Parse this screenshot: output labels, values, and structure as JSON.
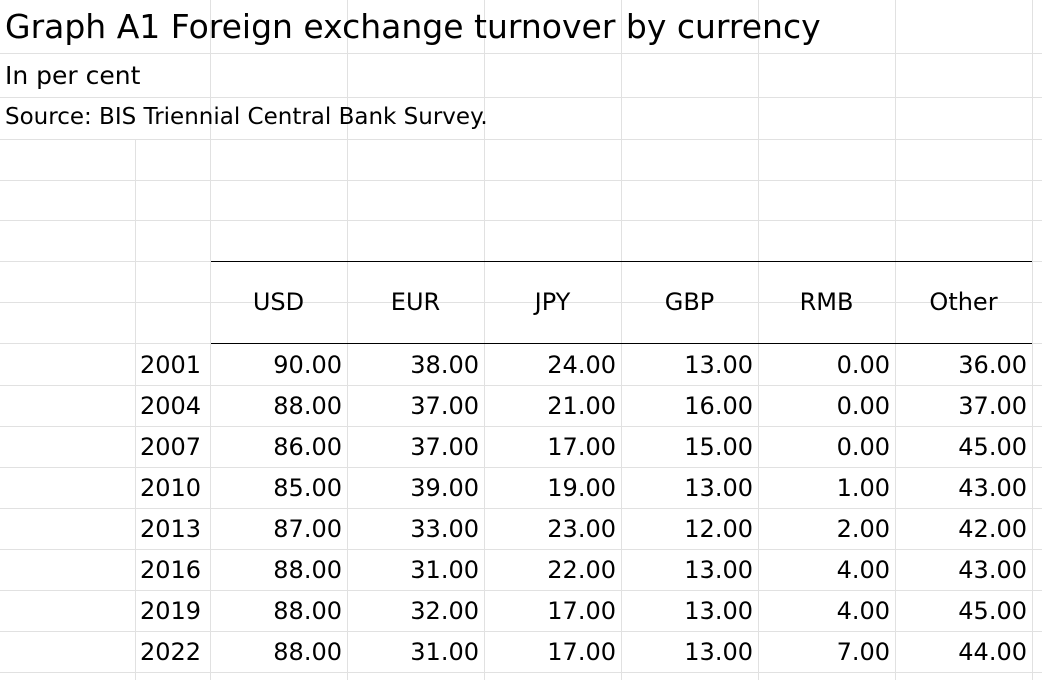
{
  "sheet": {
    "title": "Graph A1 Foreign exchange turnover by currency",
    "subtitle": "In per cent",
    "source": "Source: BIS Triennial Central Bank Survey."
  },
  "table": {
    "headers": [
      "USD",
      "EUR",
      "JPY",
      "GBP",
      "RMB",
      "Other"
    ],
    "rows": [
      {
        "year": "2001",
        "values": [
          "90.00",
          "38.00",
          "24.00",
          "13.00",
          "0.00",
          "36.00"
        ]
      },
      {
        "year": "2004",
        "values": [
          "88.00",
          "37.00",
          "21.00",
          "16.00",
          "0.00",
          "37.00"
        ]
      },
      {
        "year": "2007",
        "values": [
          "86.00",
          "37.00",
          "17.00",
          "15.00",
          "0.00",
          "45.00"
        ]
      },
      {
        "year": "2010",
        "values": [
          "85.00",
          "39.00",
          "19.00",
          "13.00",
          "1.00",
          "43.00"
        ]
      },
      {
        "year": "2013",
        "values": [
          "87.00",
          "33.00",
          "23.00",
          "12.00",
          "2.00",
          "42.00"
        ]
      },
      {
        "year": "2016",
        "values": [
          "88.00",
          "31.00",
          "22.00",
          "13.00",
          "4.00",
          "43.00"
        ]
      },
      {
        "year": "2019",
        "values": [
          "88.00",
          "32.00",
          "17.00",
          "13.00",
          "4.00",
          "45.00"
        ]
      },
      {
        "year": "2022",
        "values": [
          "88.00",
          "31.00",
          "17.00",
          "13.00",
          "7.00",
          "44.00"
        ]
      }
    ]
  }
}
